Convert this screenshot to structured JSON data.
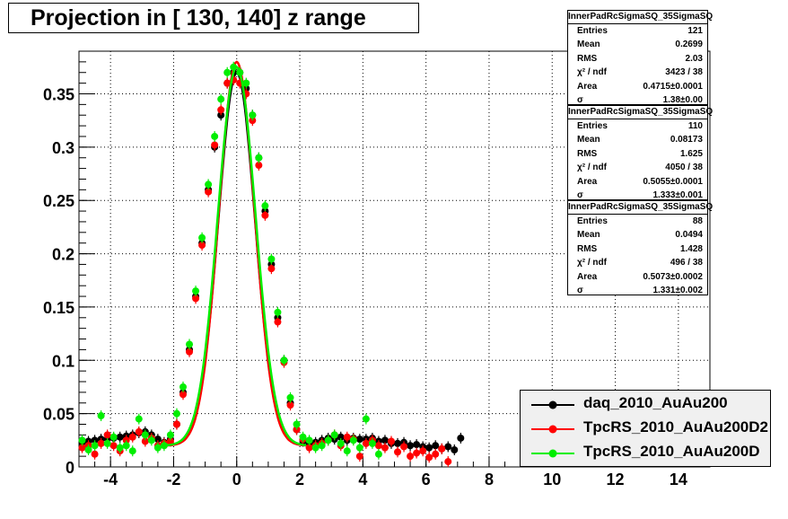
{
  "title": "Projection in [ 130, 140] z range",
  "stat_boxes": [
    {
      "name": "InnerPadRcSigmaSQ_35SigmaSQ",
      "rows": [
        {
          "k": "Entries",
          "v": "121"
        },
        {
          "k": "Mean",
          "v": "0.2699"
        },
        {
          "k": "RMS",
          "v": "2.03"
        },
        {
          "k": "χ² / ndf",
          "v": "3423 / 38"
        },
        {
          "k": "Area",
          "v": "0.4715±0.0001"
        },
        {
          "k": "σ",
          "v": "1.38±0.00"
        }
      ]
    },
    {
      "name": "InnerPadRcSigmaSQ_35SigmaSQ",
      "rows": [
        {
          "k": "Entries",
          "v": "110"
        },
        {
          "k": "Mean",
          "v": "0.08173"
        },
        {
          "k": "RMS",
          "v": "1.625"
        },
        {
          "k": "χ² / ndf",
          "v": "4050 / 38"
        },
        {
          "k": "Area",
          "v": "0.5055±0.0001"
        },
        {
          "k": "σ",
          "v": "1.333±0.001"
        }
      ]
    },
    {
      "name": "InnerPadRcSigmaSQ_35SigmaSQ",
      "rows": [
        {
          "k": "Entries",
          "v": "88"
        },
        {
          "k": "Mean",
          "v": "0.0494"
        },
        {
          "k": "RMS",
          "v": "1.428"
        },
        {
          "k": "χ² / ndf",
          "v": "496 / 38"
        },
        {
          "k": "Area",
          "v": "0.5073±0.0002"
        },
        {
          "k": "σ",
          "v": "1.331±0.002"
        }
      ]
    }
  ],
  "chart_data": {
    "type": "scatter",
    "title": "Projection in [ 130, 140] z range",
    "xlim": [
      -5,
      15
    ],
    "ylim": [
      0,
      0.39
    ],
    "x_ticks": [
      -4,
      -2,
      0,
      2,
      4,
      6,
      8,
      10,
      12,
      14
    ],
    "y_ticks": [
      0,
      0.05,
      0.1,
      0.15,
      0.2,
      0.25,
      0.3,
      0.35
    ],
    "x_tick_labels": [
      "-4",
      "-2",
      "0",
      "2",
      "4",
      "6",
      "8",
      "10",
      "12",
      "14"
    ],
    "y_tick_labels": [
      "0",
      "0.05",
      "0.1",
      "0.15",
      "0.2",
      "0.25",
      "0.3",
      "0.35"
    ],
    "grid": true,
    "legend_position": "bottom-right",
    "series": [
      {
        "name": "daq_2010_AuAu200",
        "color": "#000000",
        "fit": {
          "amplitude": 0.37,
          "mean": 0.0,
          "sigma": 0.58,
          "baseline": 0.02,
          "range": [
            -2.2,
            2.2
          ]
        },
        "x": [
          -4.9,
          -4.7,
          -4.5,
          -4.3,
          -4.1,
          -3.9,
          -3.7,
          -3.5,
          -3.3,
          -3.1,
          -2.9,
          -2.7,
          -2.5,
          -2.3,
          -2.1,
          -1.9,
          -1.7,
          -1.5,
          -1.3,
          -1.1,
          -0.9,
          -0.7,
          -0.5,
          -0.3,
          -0.1,
          0.1,
          0.3,
          0.5,
          0.7,
          0.9,
          1.1,
          1.3,
          1.5,
          1.7,
          1.9,
          2.1,
          2.3,
          2.5,
          2.7,
          2.9,
          3.1,
          3.3,
          3.5,
          3.7,
          3.9,
          4.1,
          4.3,
          4.5,
          4.7,
          4.9,
          5.1,
          5.3,
          5.5,
          5.7,
          5.9,
          6.1,
          6.3,
          6.5,
          6.7,
          6.9,
          7.1
        ],
        "y": [
          0.023,
          0.024,
          0.025,
          0.026,
          0.026,
          0.027,
          0.028,
          0.029,
          0.03,
          0.032,
          0.033,
          0.03,
          0.026,
          0.023,
          0.026,
          0.04,
          0.07,
          0.11,
          0.16,
          0.21,
          0.26,
          0.3,
          0.33,
          0.36,
          0.37,
          0.37,
          0.355,
          0.33,
          0.29,
          0.24,
          0.19,
          0.14,
          0.1,
          0.06,
          0.035,
          0.024,
          0.022,
          0.023,
          0.025,
          0.027,
          0.026,
          0.028,
          0.025,
          0.027,
          0.026,
          0.026,
          0.027,
          0.024,
          0.025,
          0.022,
          0.022,
          0.023,
          0.02,
          0.021,
          0.019,
          0.018,
          0.02,
          0.017,
          0.019,
          0.016,
          0.027
        ]
      },
      {
        "name": "TpcRS_2010_AuAu200D2",
        "color": "#ff0000",
        "fit": {
          "amplitude": 0.38,
          "mean": 0.0,
          "sigma": 0.57,
          "baseline": 0.02,
          "range": [
            -2.2,
            2.2
          ]
        },
        "x": [
          -4.9,
          -4.7,
          -4.5,
          -4.3,
          -4.1,
          -3.9,
          -3.7,
          -3.5,
          -3.3,
          -3.1,
          -2.9,
          -2.7,
          -2.5,
          -2.3,
          -2.1,
          -1.9,
          -1.7,
          -1.5,
          -1.3,
          -1.1,
          -0.9,
          -0.7,
          -0.5,
          -0.3,
          -0.1,
          0.1,
          0.3,
          0.5,
          0.7,
          0.9,
          1.1,
          1.3,
          1.5,
          1.7,
          1.9,
          2.1,
          2.3,
          2.5,
          2.7,
          2.9,
          3.1,
          3.3,
          3.5,
          3.7,
          3.9,
          4.1,
          4.3,
          4.5,
          4.7,
          4.9,
          5.1,
          5.3,
          5.5,
          5.7,
          5.9,
          6.1,
          6.3,
          6.5,
          6.7
        ],
        "y": [
          0.018,
          0.02,
          0.012,
          0.022,
          0.03,
          0.02,
          0.015,
          0.025,
          0.028,
          0.033,
          0.024,
          0.027,
          0.02,
          0.022,
          0.024,
          0.04,
          0.068,
          0.108,
          0.158,
          0.208,
          0.258,
          0.302,
          0.335,
          0.36,
          0.363,
          0.36,
          0.35,
          0.325,
          0.283,
          0.236,
          0.186,
          0.136,
          0.098,
          0.058,
          0.035,
          0.026,
          0.018,
          0.02,
          0.022,
          0.025,
          0.03,
          0.02,
          0.028,
          0.026,
          0.01,
          0.022,
          0.025,
          0.02,
          0.018,
          0.024,
          0.014,
          0.019,
          0.01,
          0.013,
          0.015,
          0.009,
          0.012,
          0.017,
          0.005
        ]
      },
      {
        "name": "TpcRS_2010_AuAu200D",
        "color": "#00ee00",
        "fit": {
          "amplitude": 0.375,
          "mean": 0.0,
          "sigma": 0.6,
          "baseline": 0.02,
          "range": [
            -2.2,
            2.2
          ]
        },
        "x": [
          -4.9,
          -4.7,
          -4.5,
          -4.3,
          -4.1,
          -3.9,
          -3.7,
          -3.5,
          -3.3,
          -3.1,
          -2.9,
          -2.7,
          -2.5,
          -2.3,
          -2.1,
          -1.9,
          -1.7,
          -1.5,
          -1.3,
          -1.1,
          -0.9,
          -0.7,
          -0.5,
          -0.3,
          -0.1,
          0.1,
          0.3,
          0.5,
          0.7,
          0.9,
          1.1,
          1.3,
          1.5,
          1.7,
          1.9,
          2.1,
          2.3,
          2.5,
          2.7,
          2.9,
          3.1,
          3.3,
          3.5,
          3.7,
          3.9,
          4.1,
          4.3,
          4.5
        ],
        "y": [
          0.025,
          0.016,
          0.02,
          0.048,
          0.022,
          0.028,
          0.018,
          0.02,
          0.015,
          0.045,
          0.03,
          0.025,
          0.018,
          0.02,
          0.03,
          0.05,
          0.075,
          0.115,
          0.165,
          0.215,
          0.265,
          0.31,
          0.345,
          0.37,
          0.375,
          0.37,
          0.36,
          0.33,
          0.29,
          0.245,
          0.195,
          0.145,
          0.1,
          0.065,
          0.04,
          0.028,
          0.025,
          0.018,
          0.02,
          0.025,
          0.03,
          0.022,
          0.015,
          0.025,
          0.018,
          0.045,
          0.022,
          0.012
        ]
      }
    ]
  }
}
